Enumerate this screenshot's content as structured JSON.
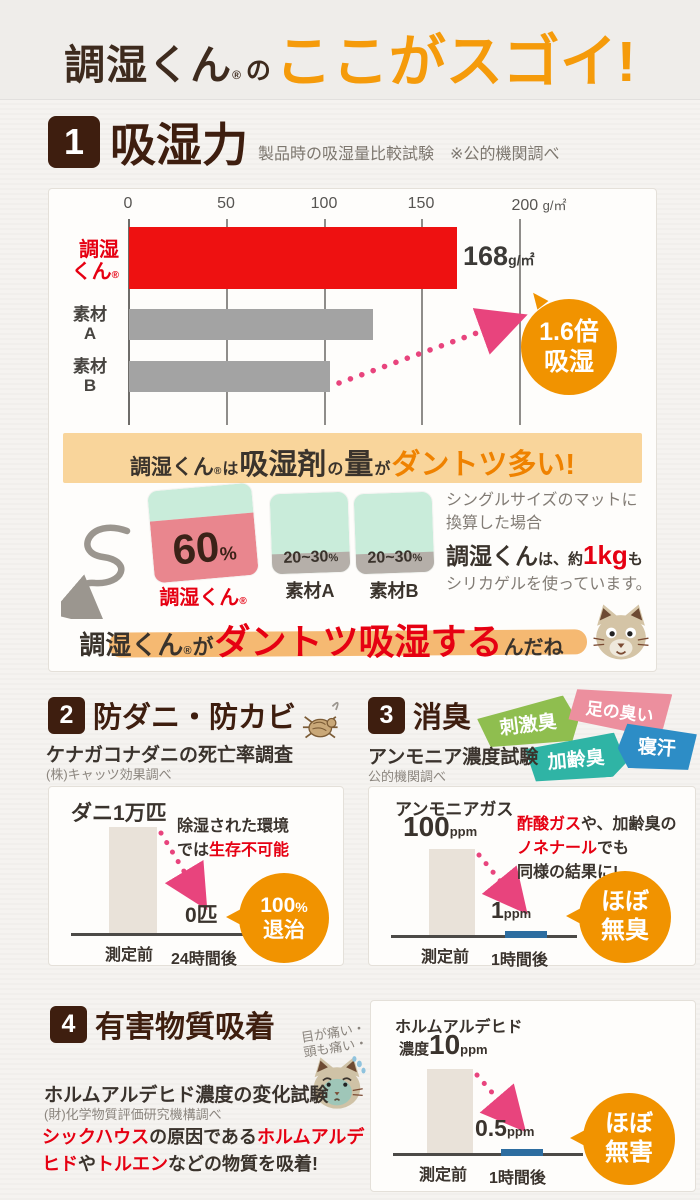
{
  "header": {
    "brand": "調湿くん",
    "reg": "®",
    "of": "の",
    "punch": "ここがスゴイ!"
  },
  "colors": {
    "maroon": "#3e1e0f",
    "accent_orange": "#f19300",
    "red": "#e60012",
    "bar_red": "#ee1111",
    "bar_gray": "#a3a3a3",
    "pink_arrow": "#e8447d",
    "banner_bg": "#f9d59b",
    "mint": "#c9ecda",
    "mat_pink": "#e9868e",
    "tag_green": "#8fbe4f",
    "tag_pink": "#ec8f9e",
    "tag_teal": "#2fb4a5",
    "tag_blue": "#2d8dc6"
  },
  "s1": {
    "num": "1",
    "title": "吸湿力",
    "note": "製品時の吸湿量比較試験",
    "source": "※公的機関調べ",
    "chart": {
      "ticks": [
        "0",
        "50",
        "100",
        "150",
        "200"
      ],
      "unit": "g/㎡",
      "rows": [
        {
          "label_l1": "調湿",
          "label_l2": "くん",
          "reg": "®",
          "value": 168
        },
        {
          "label_l1": "素材",
          "label_l2": "A",
          "value": 125
        },
        {
          "label_l1": "素材",
          "label_l2": "B",
          "value": 103
        }
      ],
      "value_label": "168",
      "value_unit": "g/㎡"
    },
    "badge": {
      "l1": "1.6倍",
      "l2": "吸湿"
    },
    "banner": {
      "a": "調湿くん",
      "reg": "®",
      "b": "は",
      "c": "吸湿剤",
      "d": "の",
      "e": "量",
      "f": "が",
      "g": "ダントツ多い!"
    },
    "mats": [
      {
        "value": "60",
        "unit": "%",
        "label": "調湿くん",
        "reg": "®"
      },
      {
        "value": "20~30",
        "unit": "%",
        "label": "素材A"
      },
      {
        "value": "20~30",
        "unit": "%",
        "label": "素材B"
      }
    ],
    "side": {
      "l1": "シングルサイズのマットに",
      "l2": "換算した場合",
      "l3a": "調湿くん",
      "l3b": "は、約",
      "l3c": "1kg",
      "l3d": "も",
      "l4": "シリカゲルを使っています。"
    },
    "phrase": {
      "a": "調湿くん",
      "reg": "®",
      "b": "が",
      "c": "ダントツ吸湿する",
      "d": "んだね"
    }
  },
  "s2": {
    "num": "2",
    "title": "防ダニ・防カビ",
    "sub": "ケナガコナダニの死亡率調査",
    "source": "(株)キャッツ効果調べ",
    "chart": {
      "start": "ダニ1万匹",
      "end": "0匹",
      "x1": "測定前",
      "x2": "24時間後",
      "note1": "除湿された環境",
      "note2a": "では",
      "note2b": "生存不可能"
    },
    "badge": {
      "l1": "100",
      "l1u": "%",
      "l2": "退治"
    }
  },
  "s3": {
    "num": "3",
    "title": "消臭",
    "tags": [
      "刺激臭",
      "足の臭い",
      "加齢臭",
      "寝汗"
    ],
    "sub": "アンモニア濃度試験",
    "source": "公的機関調べ",
    "chart": {
      "start1": "アンモニアガス",
      "start2": "100",
      "start2u": "ppm",
      "end": "1",
      "endu": "ppm",
      "x1": "測定前",
      "x2": "1時間後",
      "note1a": "酢酸ガス",
      "note1b": "や、加齢臭の",
      "note2a": "ノネナール",
      "note2b": "でも",
      "note3": "同様の結果に!"
    },
    "badge": {
      "l1": "ほぼ",
      "l2": "無臭"
    }
  },
  "s4": {
    "num": "4",
    "title": "有害物質吸着",
    "scribble1": "目が痛い・・",
    "scribble2": "頭も痛い・・",
    "sub": "ホルムアルデヒド濃度の変化試験",
    "source": "(財)化学物質評価研究機構調べ",
    "desc": {
      "r1": "シックハウス",
      "d1": "の原因である",
      "r2": "ホルムアルデヒド",
      "d2": "や",
      "r3": "トルエン",
      "d3": "などの物質を吸着!"
    },
    "chart": {
      "start1": "ホルムアルデヒド",
      "start2pre": "濃度",
      "start2": "10",
      "start2u": "ppm",
      "end": "0.5",
      "endu": "ppm",
      "x1": "測定前",
      "x2": "1時間後"
    },
    "badge": {
      "l1": "ほぼ",
      "l2": "無害"
    }
  },
  "chart_data": [
    {
      "type": "bar",
      "orientation": "horizontal",
      "title": "製品時の吸湿量比較試験 ※公的機関調べ",
      "categories": [
        "調湿くん®",
        "素材A",
        "素材B"
      ],
      "values": [
        168,
        125,
        103
      ],
      "unit": "g/㎡",
      "xlim": [
        0,
        200
      ],
      "ticks": [
        0,
        50,
        100,
        150,
        200
      ],
      "annotation": "1.6倍吸湿",
      "bar_colors": [
        "#ee1111",
        "#a3a3a3",
        "#a3a3a3"
      ]
    },
    {
      "type": "bar",
      "title": "吸湿剤の量(シングルサイズのマット換算)",
      "categories": [
        "調湿くん®",
        "素材A",
        "素材B"
      ],
      "values_pct": [
        "60%",
        "20~30%",
        "20~30%"
      ],
      "note": "調湿くんは、約1kgもシリカゲルを使っています。"
    },
    {
      "type": "bar",
      "title": "ケナガコナダニの死亡率調査 (株)キャッツ効果調べ",
      "categories": [
        "測定前",
        "24時間後"
      ],
      "values": [
        10000,
        0
      ],
      "labels": [
        "ダニ1万匹",
        "0匹"
      ],
      "annotation": "100%退治",
      "note": "除湿された環境では生存不可能"
    },
    {
      "type": "bar",
      "title": "アンモニア濃度試験 公的機関調べ",
      "categories": [
        "測定前",
        "1時間後"
      ],
      "values": [
        100,
        1
      ],
      "unit": "ppm",
      "labels": [
        "アンモニアガス100ppm",
        "1ppm"
      ],
      "annotation": "ほぼ無臭",
      "note": "酢酸ガスや、加齢臭のノネナールでも同様の結果に!"
    },
    {
      "type": "bar",
      "title": "ホルムアルデヒド濃度の変化試験 (財)化学物質評価研究機構調べ",
      "categories": [
        "測定前",
        "1時間後"
      ],
      "values": [
        10,
        0.5
      ],
      "unit": "ppm",
      "labels": [
        "ホルムアルデヒド濃度10ppm",
        "0.5ppm"
      ],
      "annotation": "ほぼ無害"
    }
  ]
}
